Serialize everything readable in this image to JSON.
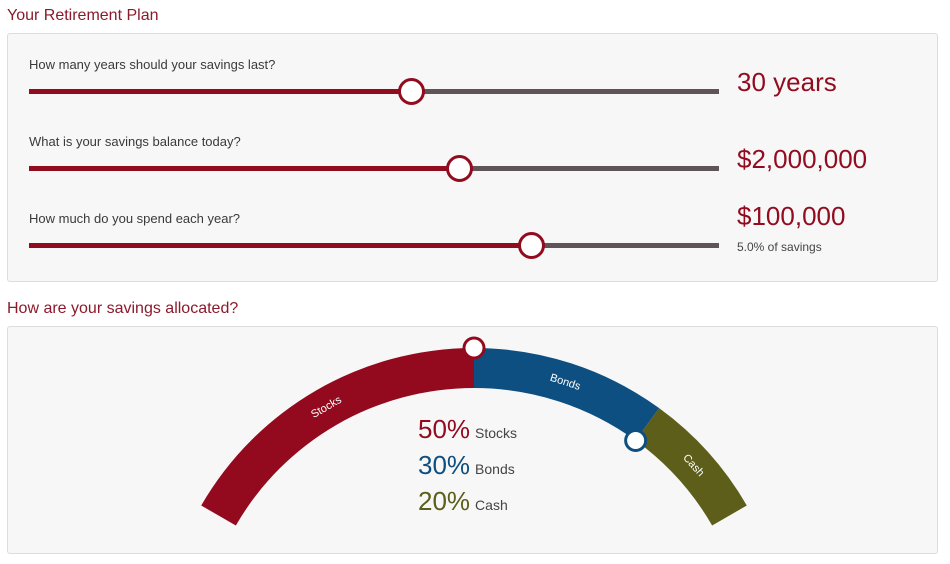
{
  "plan": {
    "title": "Your Retirement Plan",
    "sliders": [
      {
        "question": "How many years should your savings last?",
        "value": "30 years",
        "fill_pct": "55.4%"
      },
      {
        "question": "What is your savings balance today?",
        "value": "$2,000,000",
        "fill_pct": "62.3%"
      },
      {
        "question": "How much do you spend each year?",
        "value": "$100,000",
        "sub": "5.0% of savings",
        "fill_pct": "72.8%"
      }
    ]
  },
  "allocation": {
    "title": "How are your savings allocated?",
    "segments": [
      {
        "label": "Stocks",
        "pct": 50,
        "pct_text": "50%",
        "color": "#930a1f"
      },
      {
        "label": "Bonds",
        "pct": 30,
        "pct_text": "30%",
        "color": "#0d4f80"
      },
      {
        "label": "Cash",
        "pct": 20,
        "pct_text": "20%",
        "color": "#5c5e1a"
      }
    ]
  },
  "colors": {
    "accent": "#920c20",
    "track": "#5f5559",
    "title": "#8b1a2b"
  }
}
